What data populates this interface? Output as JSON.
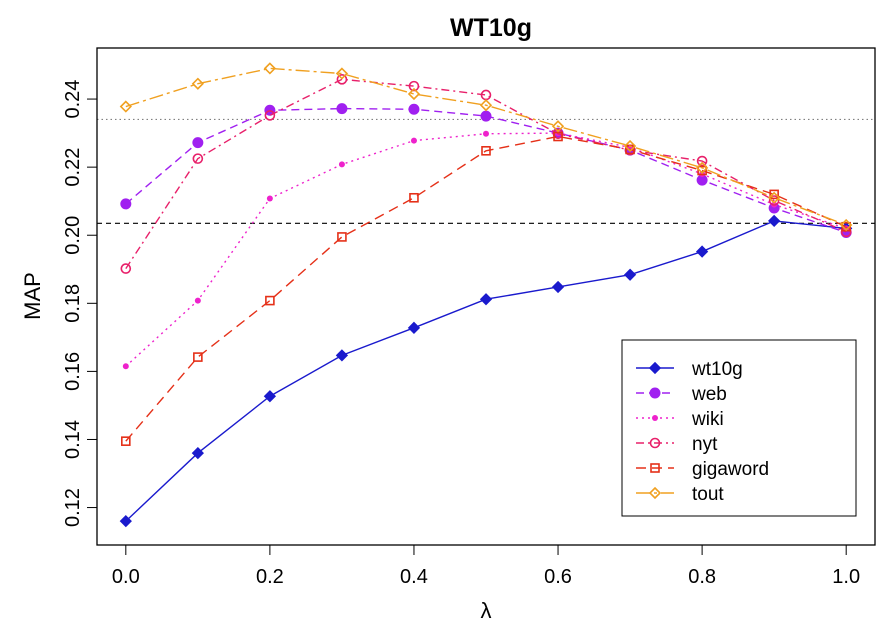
{
  "chart_data": {
    "type": "line",
    "title": "WT10g",
    "xlabel": "λ",
    "ylabel": "MAP",
    "xlim": [
      -0.04,
      1.04
    ],
    "ylim": [
      0.109,
      0.255
    ],
    "x": [
      0.0,
      0.1,
      0.2,
      0.3,
      0.4,
      0.5,
      0.6,
      0.7,
      0.8,
      0.9,
      1.0
    ],
    "x_ticks": [
      "0.0",
      "0.2",
      "0.4",
      "0.6",
      "0.8",
      "1.0"
    ],
    "x_tick_values": [
      0.0,
      0.2,
      0.4,
      0.6,
      0.8,
      1.0
    ],
    "y_ticks": [
      "0.12",
      "0.14",
      "0.16",
      "0.18",
      "0.20",
      "0.22",
      "0.24"
    ],
    "y_tick_values": [
      0.12,
      0.14,
      0.16,
      0.18,
      0.2,
      0.22,
      0.24
    ],
    "grid": false,
    "legend_position": "bottom-right",
    "reference_lines": [
      {
        "y": 0.2035,
        "style": "dashed",
        "color": "#000000"
      },
      {
        "y": 0.234,
        "style": "dotted",
        "color": "#808080"
      }
    ],
    "series": [
      {
        "name": "wt10g",
        "color": "#1a1acd",
        "dash": "",
        "marker": "diamond-filled",
        "values": [
          0.116,
          0.136,
          0.1527,
          0.1647,
          0.1728,
          0.1812,
          0.1848,
          0.1884,
          0.1952,
          0.2042,
          0.202
        ]
      },
      {
        "name": "web",
        "color": "#a020f0",
        "dash": "8,5",
        "marker": "circle-filled",
        "values": [
          0.2092,
          0.2272,
          0.2367,
          0.2372,
          0.237,
          0.235,
          0.23,
          0.225,
          0.2162,
          0.208,
          0.2008
        ]
      },
      {
        "name": "wiki",
        "color": "#ee22cc",
        "dash": "2,4",
        "marker": "dot",
        "values": [
          0.1615,
          0.1808,
          0.2108,
          0.2208,
          0.2278,
          0.2298,
          0.23,
          0.2258,
          0.218,
          0.209,
          0.202
        ]
      },
      {
        "name": "nyt",
        "color": "#e8206a",
        "dash": "8,4,2,4",
        "marker": "circle-open",
        "values": [
          0.1902,
          0.2225,
          0.2352,
          0.2458,
          0.2438,
          0.2412,
          0.2298,
          0.225,
          0.2218,
          0.2102,
          0.201
        ]
      },
      {
        "name": "gigaword",
        "color": "#e53018",
        "dash": "10,6",
        "marker": "square-open",
        "values": [
          0.1395,
          0.1642,
          0.1808,
          0.1995,
          0.211,
          0.2248,
          0.229,
          0.2252,
          0.219,
          0.212,
          0.2025
        ]
      },
      {
        "name": "tout",
        "color": "#f0a020",
        "dash": "14,4,3,4",
        "marker": "diamond-open",
        "values": [
          0.2378,
          0.2445,
          0.249,
          0.2475,
          0.2415,
          0.2382,
          0.232,
          0.2262,
          0.2198,
          0.211,
          0.203
        ]
      }
    ]
  }
}
